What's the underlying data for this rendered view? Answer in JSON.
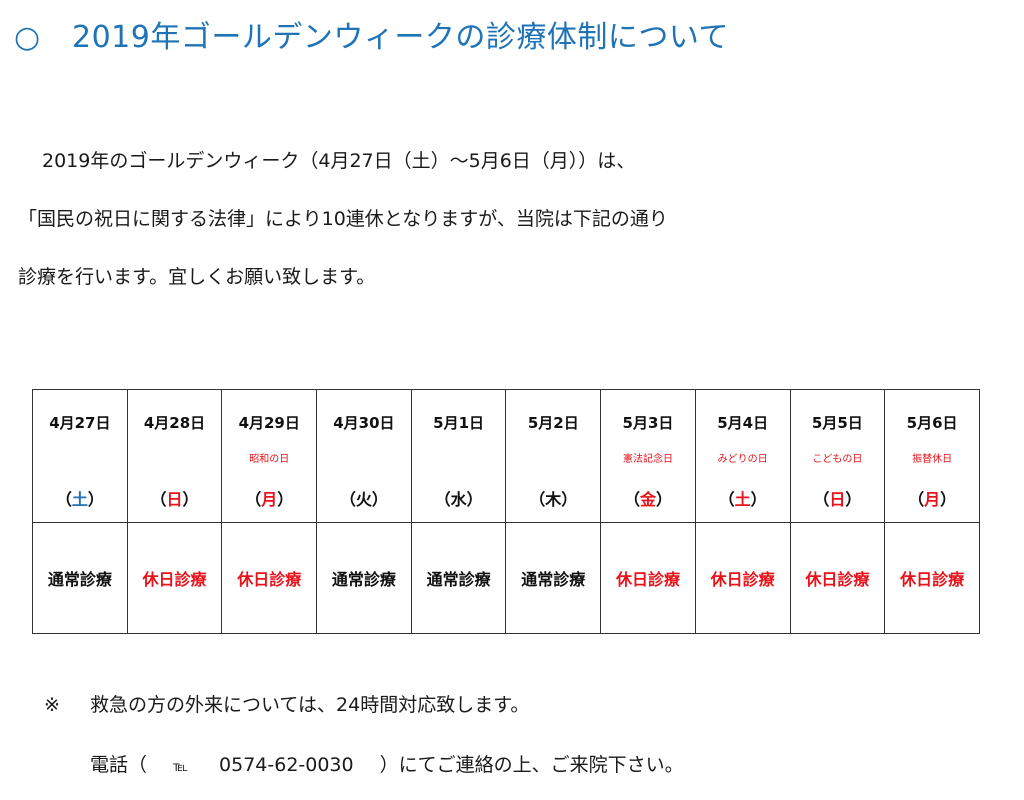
{
  "heading": {
    "marker": "○",
    "text": "2019年ゴールデンウィークの診療体制について"
  },
  "intro": {
    "lines": [
      "2019年のゴールデンウィーク（4月27日（土）～5月6日（月））は、",
      "「国民の祝日に関する法律」により10連休となりますが、当院は下記の通り",
      "診療を行います。宜しくお願い致します。"
    ]
  },
  "schedule": [
    {
      "date": "4月27日",
      "holiday": "",
      "weekday_open": "（",
      "weekday": "土",
      "weekday_close": "）",
      "weekday_style": "sat",
      "status": "通常診療",
      "status_style": "normal"
    },
    {
      "date": "4月28日",
      "holiday": "",
      "weekday_open": "（",
      "weekday": "日",
      "weekday_close": "）",
      "weekday_style": "red",
      "status": "休日診療",
      "status_style": "holiday-status"
    },
    {
      "date": "4月29日",
      "holiday": "昭和の日",
      "weekday_open": "（",
      "weekday": "月",
      "weekday_close": "）",
      "weekday_style": "red",
      "status": "休日診療",
      "status_style": "holiday-status"
    },
    {
      "date": "4月30日",
      "holiday": "",
      "weekday_open": "（",
      "weekday": "火",
      "weekday_close": "）",
      "weekday_style": "plain",
      "status": "通常診療",
      "status_style": "normal"
    },
    {
      "date": "5月1日",
      "holiday": "",
      "weekday_open": "（",
      "weekday": "水",
      "weekday_close": "）",
      "weekday_style": "plain",
      "status": "通常診療",
      "status_style": "normal"
    },
    {
      "date": "5月2日",
      "holiday": "",
      "weekday_open": "（",
      "weekday": "木",
      "weekday_close": "）",
      "weekday_style": "plain",
      "status": "通常診療",
      "status_style": "normal"
    },
    {
      "date": "5月3日",
      "holiday": "憲法記念日",
      "weekday_open": "（",
      "weekday": "金",
      "weekday_close": "）",
      "weekday_style": "red",
      "status": "休日診療",
      "status_style": "holiday-status"
    },
    {
      "date": "5月4日",
      "holiday": "みどりの日",
      "weekday_open": "（",
      "weekday": "土",
      "weekday_close": "）",
      "weekday_style": "sat-red",
      "status": "休日診療",
      "status_style": "holiday-status"
    },
    {
      "date": "5月5日",
      "holiday": "こどもの日",
      "weekday_open": "（",
      "weekday": "日",
      "weekday_close": "）",
      "weekday_style": "red",
      "status": "休日診療",
      "status_style": "holiday-status"
    },
    {
      "date": "5月6日",
      "holiday": "振替休日",
      "weekday_open": "（",
      "weekday": "月",
      "weekday_close": "）",
      "weekday_style": "red",
      "status": "休日診療",
      "status_style": "holiday-status"
    }
  ],
  "note": {
    "mark": "※",
    "text": "救急の方の外来については、24時間対応致します。"
  },
  "phone": {
    "prefix": "電話（",
    "tel_label": "℡",
    "number": "0574-62-0030",
    "suffix": "）にてご連絡の上、ご来院下さい。"
  },
  "colors": {
    "heading": "#1f73b7",
    "saturday": "#1f6fb2",
    "holiday_red": "#e8131b",
    "text": "#1a1a1a"
  }
}
